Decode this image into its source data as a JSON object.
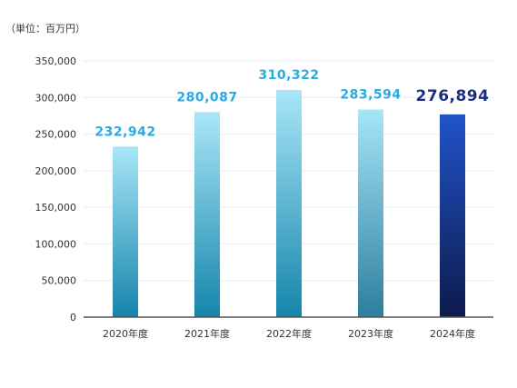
{
  "unit_label": "（単位：百万円）",
  "chart_data": {
    "type": "bar",
    "categories": [
      "2020年度",
      "2021年度",
      "2022年度",
      "2023年度",
      "2024年度"
    ],
    "values": [
      232942,
      280087,
      310322,
      283594,
      276894
    ],
    "value_labels": [
      "232,942",
      "280,087",
      "310,322",
      "283,594",
      "276,894"
    ],
    "y_ticks": [
      0,
      50000,
      100000,
      150000,
      200000,
      250000,
      300000,
      350000
    ],
    "y_tick_labels": [
      "0",
      "50,000",
      "100,000",
      "150,000",
      "200,000",
      "250,000",
      "300,000",
      "350,000"
    ],
    "ylim": [
      0,
      350000
    ],
    "grid": true,
    "highlight_index": 4,
    "colors": {
      "label": "#29abe2",
      "highlight_label": "#1c2f7e",
      "bar_top": "#a9e6f8",
      "bar_bottom": "#1585ab",
      "bar_2023_top": "#a6e6f8",
      "bar_2023_bottom": "#2e7e9e",
      "highlight_top": "#2153c9",
      "highlight_bottom": "#0d1a4c",
      "grid": "#e4eef2",
      "axis": "#555555"
    }
  }
}
